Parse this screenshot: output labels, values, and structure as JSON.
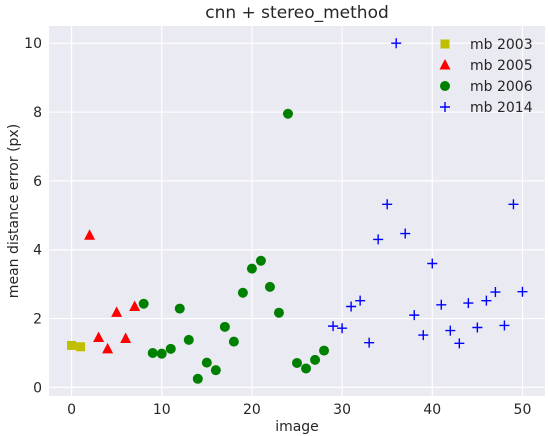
{
  "chart_data": {
    "type": "scatter",
    "title": "cnn + stereo_method",
    "xlabel": "image",
    "ylabel": "mean distance error (px)",
    "xlim": [
      -2.5,
      52.5
    ],
    "ylim": [
      -0.25,
      10.5
    ],
    "xticks": [
      0,
      10,
      20,
      30,
      40,
      50
    ],
    "yticks": [
      0,
      2,
      4,
      6,
      8,
      10
    ],
    "grid": true,
    "legend_position": "top-right",
    "series": [
      {
        "name": "mb 2003",
        "marker": "square",
        "color": "#BFBF00",
        "x": [
          0,
          1
        ],
        "y": [
          1.22,
          1.18
        ]
      },
      {
        "name": "mb 2005",
        "marker": "triangle",
        "color": "#FF0000",
        "x": [
          2,
          3,
          4,
          5,
          6,
          7
        ],
        "y": [
          4.42,
          1.45,
          1.12,
          2.18,
          1.42,
          2.35
        ]
      },
      {
        "name": "mb 2006",
        "marker": "circle",
        "color": "#008000",
        "x": [
          8,
          9,
          10,
          11,
          12,
          13,
          14,
          15,
          16,
          17,
          18,
          19,
          20,
          21,
          22,
          23,
          24,
          25,
          26,
          27,
          28
        ],
        "y": [
          2.43,
          1.0,
          0.98,
          1.12,
          2.29,
          1.38,
          0.25,
          0.72,
          0.5,
          1.76,
          1.33,
          2.75,
          3.45,
          3.68,
          2.92,
          2.17,
          7.95,
          0.71,
          0.55,
          0.8,
          1.07
        ]
      },
      {
        "name": "mb 2014",
        "marker": "plus",
        "color": "#0000FF",
        "x": [
          29,
          30,
          31,
          32,
          33,
          34,
          35,
          36,
          37,
          38,
          39,
          40,
          41,
          42,
          43,
          44,
          45,
          46,
          47,
          48,
          49,
          50
        ],
        "y": [
          1.78,
          1.72,
          2.35,
          2.52,
          1.3,
          4.3,
          5.32,
          10.0,
          4.47,
          2.1,
          1.52,
          3.6,
          2.4,
          1.65,
          1.28,
          2.45,
          1.74,
          2.52,
          2.77,
          1.8,
          5.32,
          2.78
        ]
      }
    ]
  }
}
